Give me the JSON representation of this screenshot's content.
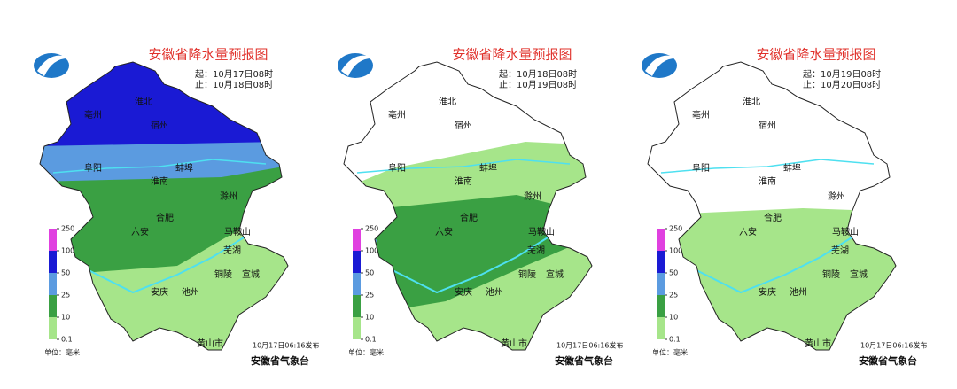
{
  "panels": [
    {
      "title": "安徽省降水量预报图",
      "start": "起：10月17日08时",
      "end": "止：10月18日08时",
      "cities": [
        "亳州",
        "淮北",
        "宿州",
        "蚌埠",
        "阜阳",
        "淮南",
        "滁州",
        "合肥",
        "六安",
        "马鞍山",
        "芜湖",
        "铜陵",
        "宣城",
        "安庆",
        "池州",
        "黄山市"
      ],
      "issued": "10月17日06:16发布",
      "publisher": "安徽省气象台",
      "unit": "单位：毫米"
    },
    {
      "title": "安徽省降水量预报图",
      "start": "起：10月18日08时",
      "end": "止：10月19日08时",
      "cities": [
        "亳州",
        "淮北",
        "宿州",
        "蚌埠",
        "阜阳",
        "淮南",
        "滁州",
        "合肥",
        "六安",
        "马鞍山",
        "芜湖",
        "铜陵",
        "宣城",
        "安庆",
        "池州",
        "黄山市"
      ],
      "issued": "10月17日06:16发布",
      "publisher": "安徽省气象台",
      "unit": "单位：毫米"
    },
    {
      "title": "安徽省降水量预报图",
      "start": "起：10月19日08时",
      "end": "止：10月20日08时",
      "cities": [
        "亳州",
        "淮北",
        "宿州",
        "蚌埠",
        "阜阳",
        "淮南",
        "滁州",
        "合肥",
        "六安",
        "马鞍山",
        "芜湖",
        "铜陵",
        "宣城",
        "安庆",
        "池州",
        "黄山市"
      ],
      "issued": "10月17日06:16发布",
      "publisher": "安徽省气象台",
      "unit": "单位：毫米"
    }
  ],
  "legend": {
    "ticks": [
      250,
      100,
      50,
      25,
      10,
      0.1
    ],
    "colors": [
      "#e040e0",
      "#1a1ad4",
      "#5b9be0",
      "#3aa043",
      "#a6e58a"
    ]
  }
}
